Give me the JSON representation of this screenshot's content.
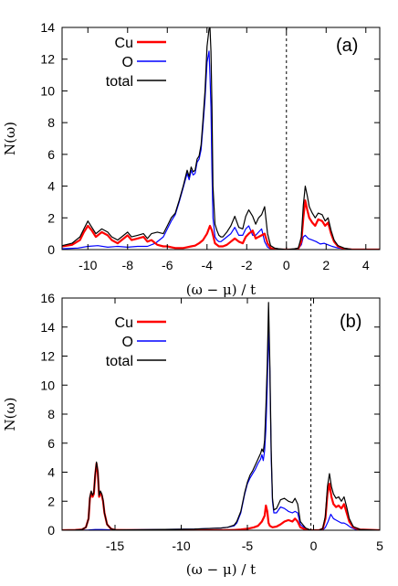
{
  "chart_data": [
    {
      "type": "line",
      "panel_label": "(a)",
      "xlabel": "(ω − μ) / t",
      "ylabel": "N(ω)",
      "xlim": [
        -11.3,
        4.7
      ],
      "ylim": [
        0,
        14
      ],
      "xticks": [
        -10,
        -8,
        -6,
        -4,
        -2,
        0,
        2,
        4
      ],
      "xtick_labels": [
        "-10",
        "-8",
        "-6",
        "-4",
        "-2",
        "0",
        "2",
        "4"
      ],
      "yticks": [
        0,
        2,
        4,
        6,
        8,
        10,
        12,
        14
      ],
      "ytick_labels": [
        "0",
        "2",
        "4",
        "6",
        "8",
        "10",
        "12",
        "14"
      ],
      "fermi_level": 0,
      "grid": false,
      "legend_position": "top-left",
      "series": [
        {
          "name": "Cu",
          "color": "#ff0000",
          "stroke_width": 2.2,
          "x": [
            -11.3,
            -10.8,
            -10.4,
            -10.2,
            -10.0,
            -9.8,
            -9.6,
            -9.3,
            -9.0,
            -8.8,
            -8.5,
            -8.3,
            -8.0,
            -7.8,
            -7.5,
            -7.2,
            -7.0,
            -6.8,
            -6.5,
            -6.2,
            -6.0,
            -5.8,
            -5.6,
            -5.4,
            -5.2,
            -5.0,
            -4.8,
            -4.6,
            -4.4,
            -4.2,
            -4.0,
            -3.85,
            -3.75,
            -3.6,
            -3.4,
            -3.2,
            -3.0,
            -2.8,
            -2.6,
            -2.4,
            -2.2,
            -2.05,
            -1.9,
            -1.7,
            -1.55,
            -1.4,
            -1.25,
            -1.1,
            -0.95,
            -0.8,
            -0.6,
            -0.4,
            0.0,
            0.4,
            0.6,
            0.75,
            0.85,
            0.95,
            1.05,
            1.15,
            1.3,
            1.45,
            1.6,
            1.8,
            1.95,
            2.1,
            2.25,
            2.4,
            2.6,
            2.9,
            3.3,
            4.0,
            4.7
          ],
          "y": [
            0.2,
            0.3,
            0.6,
            1.1,
            1.5,
            1.2,
            0.8,
            1.1,
            0.9,
            0.6,
            0.4,
            0.6,
            0.9,
            0.6,
            0.7,
            0.8,
            0.5,
            0.6,
            0.3,
            0.2,
            0.2,
            0.15,
            0.1,
            0.1,
            0.1,
            0.15,
            0.2,
            0.25,
            0.4,
            0.6,
            1.0,
            1.5,
            1.2,
            0.4,
            0.2,
            0.2,
            0.3,
            0.5,
            0.7,
            0.5,
            0.4,
            0.8,
            1.0,
            1.2,
            0.7,
            0.8,
            0.9,
            1.0,
            0.4,
            0.1,
            0.0,
            0.0,
            0.0,
            0.0,
            0.05,
            0.5,
            2.0,
            3.1,
            2.5,
            2.0,
            1.7,
            1.5,
            1.9,
            1.8,
            1.5,
            1.7,
            1.0,
            0.5,
            0.2,
            0.05,
            0.0,
            0.0,
            0.0
          ]
        },
        {
          "name": "O",
          "color": "#0000ff",
          "stroke_width": 1.2,
          "x": [
            -11.3,
            -10.5,
            -10.0,
            -9.5,
            -9.0,
            -8.5,
            -8.0,
            -7.5,
            -7.0,
            -6.6,
            -6.2,
            -6.0,
            -5.8,
            -5.6,
            -5.4,
            -5.2,
            -5.0,
            -4.9,
            -4.8,
            -4.7,
            -4.6,
            -4.5,
            -4.4,
            -4.3,
            -4.2,
            -4.1,
            -4.0,
            -3.9,
            -3.85,
            -3.8,
            -3.75,
            -3.7,
            -3.6,
            -3.5,
            -3.4,
            -3.3,
            -3.2,
            -3.0,
            -2.8,
            -2.6,
            -2.4,
            -2.2,
            -2.05,
            -1.9,
            -1.7,
            -1.55,
            -1.4,
            -1.25,
            -1.1,
            -0.95,
            -0.8,
            -0.6,
            -0.4,
            0.0,
            0.4,
            0.6,
            0.75,
            0.85,
            0.95,
            1.1,
            1.3,
            1.5,
            1.7,
            1.9,
            2.1,
            2.3,
            2.6,
            3.0,
            3.5,
            4.7
          ],
          "y": [
            0.05,
            0.1,
            0.2,
            0.25,
            0.15,
            0.2,
            0.15,
            0.2,
            0.2,
            0.4,
            0.8,
            1.3,
            1.8,
            2.2,
            3.0,
            3.9,
            4.8,
            4.4,
            5.0,
            4.7,
            4.8,
            5.5,
            5.7,
            6.3,
            7.8,
            9.5,
            11.8,
            12.5,
            11.0,
            9.0,
            5.0,
            2.0,
            0.8,
            0.6,
            0.5,
            0.5,
            0.6,
            0.8,
            1.0,
            1.4,
            0.9,
            0.9,
            1.3,
            1.5,
            0.9,
            0.9,
            1.1,
            1.3,
            0.5,
            0.15,
            0.05,
            0.0,
            0.0,
            0.0,
            0.0,
            0.05,
            0.3,
            0.8,
            0.9,
            0.7,
            0.6,
            0.5,
            0.35,
            0.4,
            0.3,
            0.2,
            0.1,
            0.05,
            0.0,
            0.0
          ]
        },
        {
          "name": "total",
          "color": "#000000",
          "stroke_width": 1.2,
          "x": [
            -11.3,
            -10.8,
            -10.4,
            -10.2,
            -10.0,
            -9.8,
            -9.6,
            -9.3,
            -9.0,
            -8.8,
            -8.5,
            -8.3,
            -8.0,
            -7.8,
            -7.5,
            -7.2,
            -7.0,
            -6.8,
            -6.5,
            -6.2,
            -6.0,
            -5.8,
            -5.6,
            -5.4,
            -5.2,
            -5.0,
            -4.9,
            -4.8,
            -4.7,
            -4.6,
            -4.5,
            -4.4,
            -4.3,
            -4.2,
            -4.1,
            -4.0,
            -3.9,
            -3.85,
            -3.8,
            -3.75,
            -3.7,
            -3.6,
            -3.5,
            -3.4,
            -3.3,
            -3.2,
            -3.0,
            -2.8,
            -2.6,
            -2.4,
            -2.2,
            -2.05,
            -1.9,
            -1.7,
            -1.55,
            -1.4,
            -1.25,
            -1.1,
            -0.95,
            -0.8,
            -0.6,
            -0.4,
            0.0,
            0.4,
            0.6,
            0.75,
            0.85,
            0.95,
            1.05,
            1.15,
            1.3,
            1.45,
            1.6,
            1.8,
            1.95,
            2.1,
            2.25,
            2.4,
            2.6,
            2.9,
            3.3,
            4.0,
            4.7
          ],
          "y": [
            0.25,
            0.4,
            0.8,
            1.3,
            1.8,
            1.4,
            1.0,
            1.3,
            1.1,
            0.8,
            0.6,
            0.8,
            1.1,
            0.8,
            0.9,
            1.0,
            0.7,
            1.0,
            1.1,
            1.0,
            1.5,
            2.0,
            2.3,
            3.1,
            4.0,
            5.0,
            4.6,
            5.2,
            4.9,
            5.0,
            5.7,
            5.9,
            6.6,
            8.2,
            10.0,
            12.8,
            13.9,
            14.0,
            12.5,
            9.0,
            4.0,
            1.6,
            1.2,
            0.9,
            0.8,
            0.8,
            1.1,
            1.5,
            2.1,
            1.4,
            1.3,
            2.1,
            2.5,
            2.1,
            1.6,
            2.0,
            2.2,
            2.7,
            1.0,
            0.25,
            0.1,
            0.05,
            0.0,
            0.05,
            0.1,
            0.8,
            2.8,
            4.0,
            3.4,
            2.7,
            2.3,
            2.0,
            2.3,
            2.2,
            1.8,
            2.0,
            1.2,
            0.6,
            0.25,
            0.1,
            0.0,
            0.0,
            0.0
          ]
        }
      ]
    },
    {
      "type": "line",
      "panel_label": "(b)",
      "xlabel": "(ω − μ) / t",
      "ylabel": "N(ω)",
      "xlim": [
        -19,
        5
      ],
      "ylim": [
        0,
        16
      ],
      "xticks": [
        -15,
        -10,
        -5,
        0,
        5
      ],
      "xtick_labels": [
        "-15",
        "-10",
        "-5",
        "0",
        "5"
      ],
      "yticks": [
        0,
        2,
        4,
        6,
        8,
        10,
        12,
        14,
        16
      ],
      "ytick_labels": [
        "0",
        "2",
        "4",
        "6",
        "8",
        "10",
        "12",
        "14",
        "16"
      ],
      "fermi_level": -0.2,
      "grid": false,
      "legend_position": "top-left",
      "series": [
        {
          "name": "Cu",
          "color": "#ff0000",
          "stroke_width": 2.2,
          "x": [
            -19,
            -18,
            -17.5,
            -17.2,
            -17.0,
            -16.9,
            -16.8,
            -16.7,
            -16.6,
            -16.5,
            -16.4,
            -16.3,
            -16.2,
            -16.1,
            -16.0,
            -15.9,
            -15.8,
            -15.6,
            -15.3,
            -15.0,
            -12,
            -9,
            -7,
            -6,
            -5.5,
            -5,
            -4.5,
            -4.2,
            -3.9,
            -3.7,
            -3.6,
            -3.5,
            -3.4,
            -3.3,
            -3.1,
            -2.8,
            -2.5,
            -2.2,
            -1.9,
            -1.6,
            -1.4,
            -1.2,
            -1.0,
            -0.6,
            -0.2,
            0.4,
            0.7,
            0.9,
            1.05,
            1.2,
            1.35,
            1.5,
            1.7,
            1.9,
            2.1,
            2.3,
            2.5,
            2.7,
            3.0,
            3.5,
            5
          ],
          "y": [
            0,
            0.02,
            0.05,
            0.2,
            0.8,
            2.2,
            2.6,
            2.3,
            2.5,
            3.8,
            4.6,
            4.0,
            2.3,
            2.6,
            2.4,
            2.0,
            1.2,
            0.4,
            0.1,
            0.02,
            0,
            0,
            0,
            0.02,
            0.05,
            0.1,
            0.2,
            0.3,
            0.6,
            1.0,
            1.7,
            1.3,
            0.5,
            0.3,
            0.2,
            0.25,
            0.4,
            0.6,
            0.7,
            0.6,
            0.8,
            0.6,
            0.2,
            0.05,
            0,
            0,
            0.1,
            0.8,
            2.5,
            3.2,
            2.3,
            1.8,
            1.6,
            1.7,
            1.5,
            1.8,
            1.2,
            0.6,
            0.2,
            0.05,
            0
          ]
        },
        {
          "name": "O",
          "color": "#0000ff",
          "stroke_width": 1.2,
          "x": [
            -19,
            -17,
            -16.5,
            -16,
            -15,
            -12,
            -9,
            -7,
            -6.5,
            -6,
            -5.8,
            -5.5,
            -5.2,
            -5.0,
            -4.8,
            -4.6,
            -4.4,
            -4.2,
            -4.0,
            -3.9,
            -3.8,
            -3.7,
            -3.6,
            -3.5,
            -3.4,
            -3.3,
            -3.2,
            -3.1,
            -3.0,
            -2.8,
            -2.5,
            -2.2,
            -1.9,
            -1.6,
            -1.4,
            -1.2,
            -1.0,
            -0.6,
            -0.2,
            0.4,
            0.7,
            0.9,
            1.1,
            1.3,
            1.5,
            1.7,
            1.9,
            2.1,
            2.3,
            2.5,
            2.8,
            3.2,
            5
          ],
          "y": [
            0,
            0.02,
            0.05,
            0.05,
            0.02,
            0.05,
            0.08,
            0.15,
            0.2,
            0.3,
            0.5,
            1.2,
            2.5,
            3.2,
            3.6,
            3.9,
            4.2,
            4.6,
            4.9,
            5.2,
            4.8,
            5.5,
            7.0,
            10.0,
            14.0,
            11.0,
            5.0,
            2.0,
            1.2,
            1.2,
            1.6,
            1.5,
            1.3,
            1.2,
            1.3,
            1.2,
            0.4,
            0.1,
            0,
            0,
            0.02,
            0.2,
            0.6,
            1.1,
            0.8,
            0.7,
            0.6,
            0.5,
            0.5,
            0.4,
            0.2,
            0.05,
            0
          ]
        },
        {
          "name": "total",
          "color": "#000000",
          "stroke_width": 1.2,
          "x": [
            -19,
            -18,
            -17.5,
            -17.2,
            -17.0,
            -16.9,
            -16.8,
            -16.7,
            -16.6,
            -16.5,
            -16.4,
            -16.3,
            -16.2,
            -16.1,
            -16.0,
            -15.9,
            -15.8,
            -15.6,
            -15.3,
            -15.0,
            -12,
            -9,
            -7,
            -6.5,
            -6,
            -5.8,
            -5.5,
            -5.2,
            -5.0,
            -4.8,
            -4.6,
            -4.4,
            -4.2,
            -4.0,
            -3.9,
            -3.8,
            -3.7,
            -3.6,
            -3.5,
            -3.4,
            -3.3,
            -3.2,
            -3.1,
            -3.0,
            -2.8,
            -2.5,
            -2.2,
            -1.9,
            -1.6,
            -1.4,
            -1.2,
            -1.0,
            -0.6,
            -0.2,
            0.4,
            0.7,
            0.9,
            1.05,
            1.2,
            1.35,
            1.5,
            1.7,
            1.9,
            2.1,
            2.3,
            2.5,
            2.7,
            3.0,
            3.5,
            5
          ],
          "y": [
            0,
            0.02,
            0.05,
            0.2,
            0.8,
            2.3,
            2.7,
            2.4,
            2.6,
            3.9,
            4.7,
            4.1,
            2.4,
            2.7,
            2.5,
            2.1,
            1.2,
            0.4,
            0.1,
            0.02,
            0.05,
            0.08,
            0.15,
            0.2,
            0.35,
            0.6,
            1.3,
            2.6,
            3.3,
            3.8,
            4.1,
            4.5,
            4.9,
            5.3,
            5.6,
            5.4,
            6.2,
            8.5,
            11.5,
            15.7,
            11.5,
            5.5,
            2.2,
            1.4,
            1.5,
            2.1,
            2.2,
            2.0,
            1.9,
            2.2,
            1.8,
            0.6,
            0.15,
            0,
            0,
            0.12,
            1.0,
            3.0,
            3.9,
            3.0,
            2.5,
            2.2,
            2.3,
            2.0,
            2.3,
            1.6,
            0.8,
            0.25,
            0.05,
            0
          ]
        }
      ]
    }
  ]
}
